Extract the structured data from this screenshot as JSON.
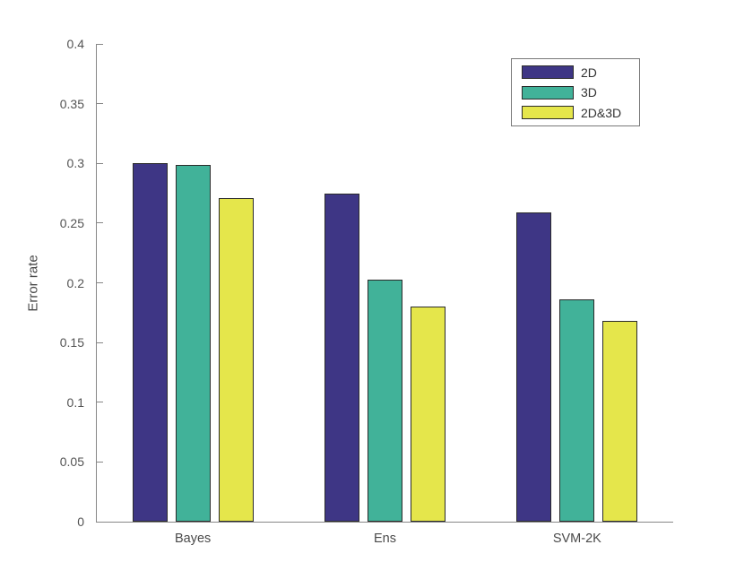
{
  "chart_data": {
    "type": "bar",
    "title": "",
    "xlabel": "",
    "ylabel": "Error rate",
    "categories": [
      "Bayes",
      "Ens",
      "SVM-2K"
    ],
    "series": [
      {
        "name": "2D",
        "color": "#3e3685",
        "values": [
          0.3,
          0.275,
          0.259
        ]
      },
      {
        "name": "3D",
        "color": "#41b299",
        "values": [
          0.299,
          0.203,
          0.186
        ]
      },
      {
        "name": "2D&3D",
        "color": "#e5e64b",
        "values": [
          0.271,
          0.18,
          0.168
        ]
      }
    ],
    "ylim": [
      0,
      0.4
    ],
    "yticks": [
      0,
      0.05,
      0.1,
      0.15,
      0.2,
      0.25,
      0.3,
      0.35,
      0.4
    ],
    "ytick_labels": [
      "0",
      "0.05",
      "0.1",
      "0.15",
      "0.2",
      "0.25",
      "0.3",
      "0.35",
      "0.4"
    ],
    "grid": false,
    "legend_position": "top-right",
    "bar_edge_color": "#2b2b2b",
    "axis_color": "#878787",
    "tick_label_color": "#535353"
  }
}
